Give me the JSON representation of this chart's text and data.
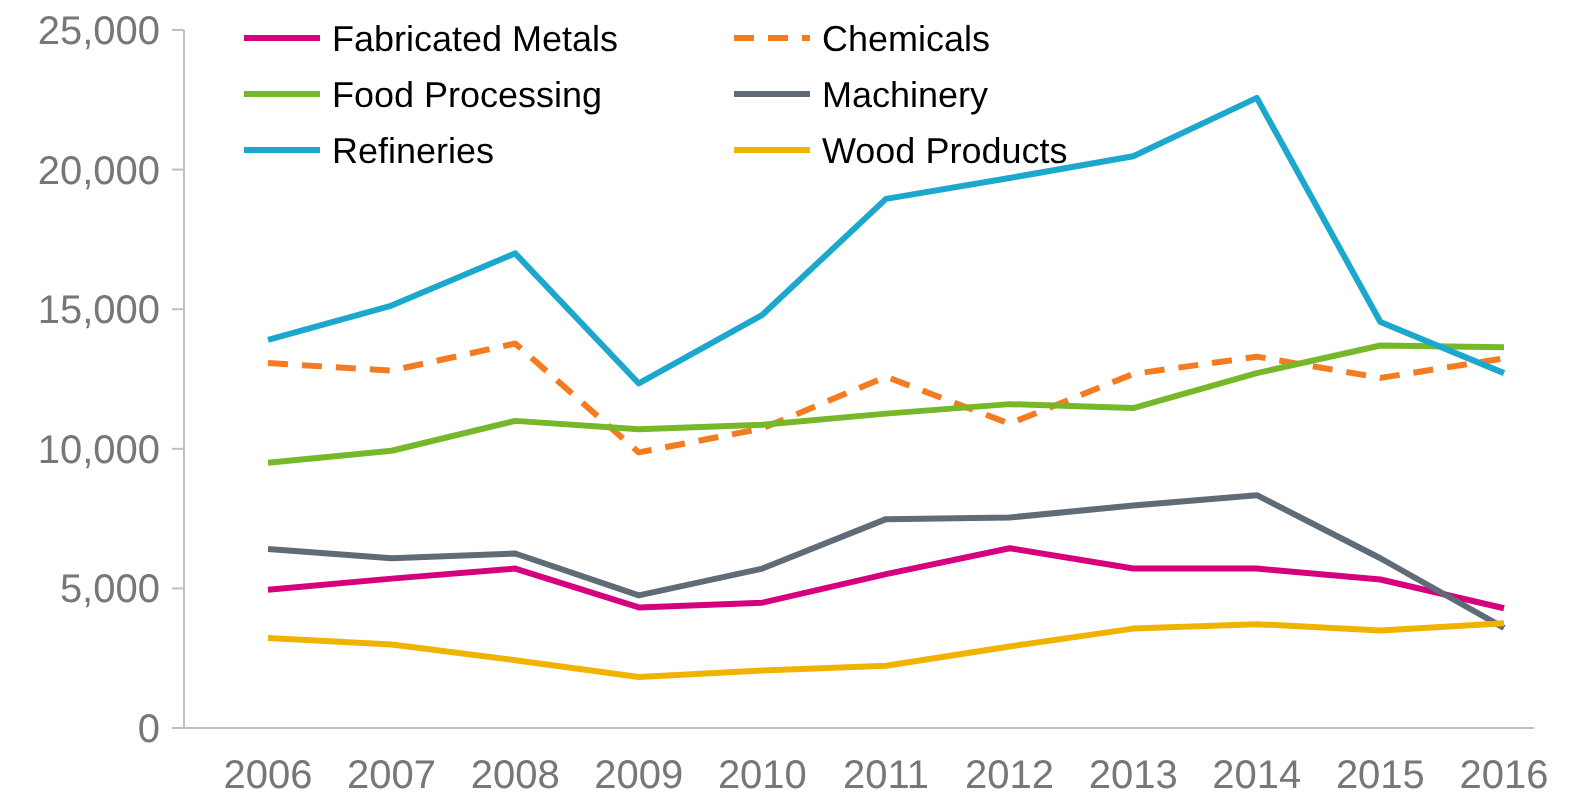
{
  "chart_data": {
    "type": "line",
    "categories": [
      "2006",
      "2007",
      "2008",
      "2009",
      "2010",
      "2011",
      "2012",
      "2013",
      "2014",
      "2015",
      "2016"
    ],
    "series": [
      {
        "name": "Fabricated Metals",
        "color": "#d6007e",
        "values": [
          4950,
          5350,
          5710,
          4320,
          4490,
          5510,
          6440,
          5710,
          5710,
          5320,
          4290
        ]
      },
      {
        "name": "Chemicals",
        "color": "#f47b20",
        "line_style": "dashed",
        "values": [
          13070,
          12800,
          13770,
          9870,
          10730,
          12580,
          10900,
          12680,
          13300,
          12540,
          13240
        ]
      },
      {
        "name": "Food Processing",
        "color": "#76b82a",
        "values": [
          9500,
          9930,
          11000,
          10700,
          10860,
          11260,
          11600,
          11460,
          12710,
          13700,
          13640
        ]
      },
      {
        "name": "Machinery",
        "color": "#5f6b77",
        "values": [
          6410,
          6080,
          6250,
          4750,
          5710,
          7480,
          7540,
          7970,
          8340,
          6080,
          3590
        ]
      },
      {
        "name": "Refineries",
        "color": "#1ba8cc",
        "values": [
          13900,
          15130,
          17000,
          12340,
          14800,
          18950,
          19700,
          20480,
          22570,
          14540,
          12710
        ]
      },
      {
        "name": "Wood Products",
        "color": "#f0b400",
        "values": [
          3220,
          2990,
          2430,
          1830,
          2060,
          2230,
          2920,
          3560,
          3720,
          3490,
          3750
        ]
      }
    ],
    "ylim": [
      0,
      25000
    ],
    "yticks": [
      {
        "value": 0,
        "label": "0"
      },
      {
        "value": 5000,
        "label": "5,000"
      },
      {
        "value": 10000,
        "label": "10,000"
      },
      {
        "value": 15000,
        "label": "15,000"
      },
      {
        "value": 20000,
        "label": "20,000"
      },
      {
        "value": 25000,
        "label": "25,000"
      }
    ],
    "grid": false,
    "legend": "top left",
    "line_style": "solid",
    "marker": "none"
  }
}
